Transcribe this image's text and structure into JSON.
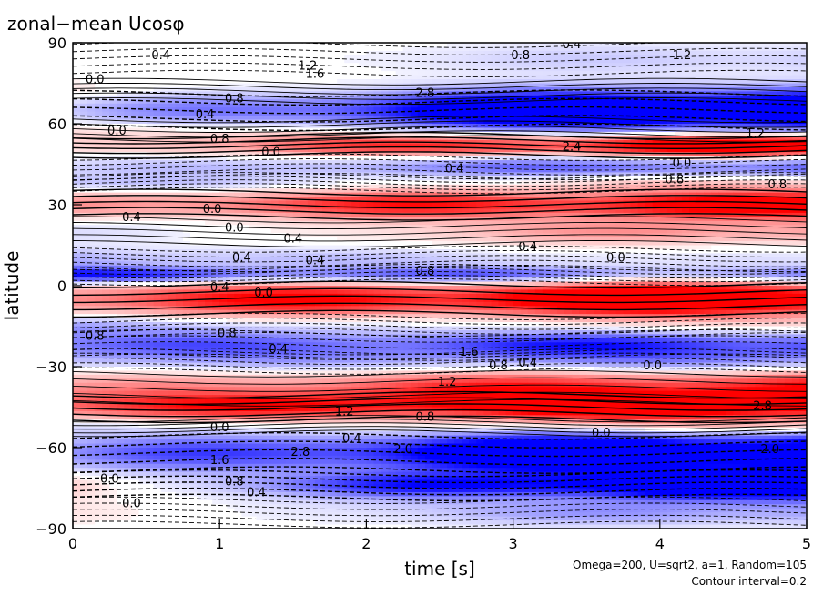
{
  "chart_data": {
    "type": "heatmap",
    "title": "zonal−mean  Ucosφ",
    "xlabel": "time [s]",
    "ylabel": "latitude",
    "xlim": [
      0,
      5
    ],
    "ylim": [
      -90,
      90
    ],
    "x_ticks": [
      "0",
      "1",
      "2",
      "3",
      "4",
      "5"
    ],
    "y_ticks": [
      "90",
      "60",
      "30",
      "0",
      "−30",
      "−60",
      "−90"
    ],
    "annotations": [
      "Omega=200, U=sqrt2, a=1, Random=105",
      "Contour interval=0.2"
    ],
    "contour_interval": 0.2,
    "colors": {
      "positive": "#ff0000",
      "negative": "#0000ff",
      "zero": "#ffffff"
    },
    "bands": [
      {
        "lat": 84,
        "w": 6,
        "v0": 0.1,
        "v1": -0.4
      },
      {
        "lat": 72,
        "w": 4,
        "v0": 0.3,
        "v1": -0.2
      },
      {
        "lat": 65,
        "w": 7,
        "v0": -0.4,
        "v1": -3.2
      },
      {
        "lat": 58,
        "w": 4,
        "v0": 0.5,
        "v1": -0.2
      },
      {
        "lat": 52,
        "w": 4,
        "v0": 0.3,
        "v1": 2.4
      },
      {
        "lat": 44,
        "w": 4,
        "v0": -0.3,
        "v1": -1.2
      },
      {
        "lat": 38,
        "w": 3,
        "v0": -0.6,
        "v1": 0.4
      },
      {
        "lat": 30,
        "w": 5,
        "v0": 0.8,
        "v1": 2.2
      },
      {
        "lat": 20,
        "w": 5,
        "v0": -0.3,
        "v1": 0.8
      },
      {
        "lat": 10,
        "w": 4,
        "v0": -0.6,
        "v1": -0.2
      },
      {
        "lat": 4,
        "w": 3,
        "v0": -1.6,
        "v1": -1.0
      },
      {
        "lat": -5,
        "w": 6,
        "v0": 1.2,
        "v1": 2.8
      },
      {
        "lat": -15,
        "w": 4,
        "v0": -0.6,
        "v1": 0.2
      },
      {
        "lat": -22,
        "w": 5,
        "v0": -1.0,
        "v1": -1.6
      },
      {
        "lat": -28,
        "w": 4,
        "v0": -0.4,
        "v1": -0.6
      },
      {
        "lat": -38,
        "w": 6,
        "v0": 0.6,
        "v1": 1.8
      },
      {
        "lat": -45,
        "w": 5,
        "v0": 1.2,
        "v1": 2.4
      },
      {
        "lat": -52,
        "w": 3,
        "v0": -0.3,
        "v1": 0.4
      },
      {
        "lat": -62,
        "w": 7,
        "v0": -0.8,
        "v1": -3.2
      },
      {
        "lat": -74,
        "w": 5,
        "v0": 0.4,
        "v1": -3.0
      },
      {
        "lat": -84,
        "w": 5,
        "v0": 0.2,
        "v1": -0.8
      }
    ],
    "contour_labels": [
      {
        "text": "0.4",
        "x": 0.6,
        "y": 84
      },
      {
        "text": "1.2",
        "x": 1.6,
        "y": 80
      },
      {
        "text": "1.6",
        "x": 1.65,
        "y": 77
      },
      {
        "text": "2.8",
        "x": 2.4,
        "y": 70
      },
      {
        "text": "0.8",
        "x": 3.05,
        "y": 84
      },
      {
        "text": "0.4",
        "x": 3.4,
        "y": 88
      },
      {
        "text": "1.2",
        "x": 4.15,
        "y": 84
      },
      {
        "text": "0.8",
        "x": 1.1,
        "y": 68
      },
      {
        "text": "0.0",
        "x": 0.15,
        "y": 75
      },
      {
        "text": "0.4",
        "x": 0.9,
        "y": 62
      },
      {
        "text": "0.0",
        "x": 0.3,
        "y": 56
      },
      {
        "text": "0.8",
        "x": 1.0,
        "y": 53
      },
      {
        "text": "0.0",
        "x": 1.35,
        "y": 48
      },
      {
        "text": "0.4",
        "x": 2.6,
        "y": 42
      },
      {
        "text": "0.0",
        "x": 4.15,
        "y": 44
      },
      {
        "text": "0.8",
        "x": 4.1,
        "y": 38
      },
      {
        "text": "0.8",
        "x": 4.8,
        "y": 36
      },
      {
        "text": "0.4",
        "x": 0.4,
        "y": 24
      },
      {
        "text": "0.0",
        "x": 0.95,
        "y": 27
      },
      {
        "text": "0.0",
        "x": 1.1,
        "y": 20
      },
      {
        "text": "0.4",
        "x": 1.5,
        "y": 16
      },
      {
        "text": "0.4",
        "x": 1.65,
        "y": 8
      },
      {
        "text": "0.4",
        "x": 3.1,
        "y": 13
      },
      {
        "text": "0.0",
        "x": 3.7,
        "y": 9
      },
      {
        "text": "0.4",
        "x": 1.15,
        "y": 9
      },
      {
        "text": "0.8",
        "x": 2.4,
        "y": 4
      },
      {
        "text": "0.4",
        "x": 1.0,
        "y": -2
      },
      {
        "text": "0.0",
        "x": 1.3,
        "y": -4
      },
      {
        "text": "0.8",
        "x": 1.05,
        "y": -19
      },
      {
        "text": "0.8",
        "x": 0.15,
        "y": -20
      },
      {
        "text": "0.4",
        "x": 1.4,
        "y": -25
      },
      {
        "text": "0.8",
        "x": 2.9,
        "y": -31
      },
      {
        "text": "1.2",
        "x": 2.55,
        "y": -37
      },
      {
        "text": "0.4",
        "x": 3.1,
        "y": -30
      },
      {
        "text": "0.0",
        "x": 3.95,
        "y": -31
      },
      {
        "text": "0.8",
        "x": 2.4,
        "y": -50
      },
      {
        "text": "1.2",
        "x": 1.85,
        "y": -48
      },
      {
        "text": "0.0",
        "x": 1.0,
        "y": -54
      },
      {
        "text": "0.4",
        "x": 1.9,
        "y": -58
      },
      {
        "text": "0.0",
        "x": 3.6,
        "y": -56
      },
      {
        "text": "0.0",
        "x": 0.25,
        "y": -73
      },
      {
        "text": "0.8",
        "x": 1.1,
        "y": -74
      },
      {
        "text": "0.4",
        "x": 1.25,
        "y": -78
      },
      {
        "text": "0.0",
        "x": 0.4,
        "y": -82
      },
      {
        "text": "1.6",
        "x": 1.0,
        "y": -66
      },
      {
        "text": "2.8",
        "x": 1.55,
        "y": -63
      },
      {
        "text": "2.0",
        "x": 2.25,
        "y": -62
      },
      {
        "text": "1.6",
        "x": 2.7,
        "y": -26
      },
      {
        "text": "2.4",
        "x": 3.4,
        "y": 50
      },
      {
        "text": "2.0",
        "x": 4.75,
        "y": -62
      },
      {
        "text": "2.8",
        "x": 4.7,
        "y": -46
      },
      {
        "text": "1.2",
        "x": 4.65,
        "y": 55
      }
    ]
  }
}
